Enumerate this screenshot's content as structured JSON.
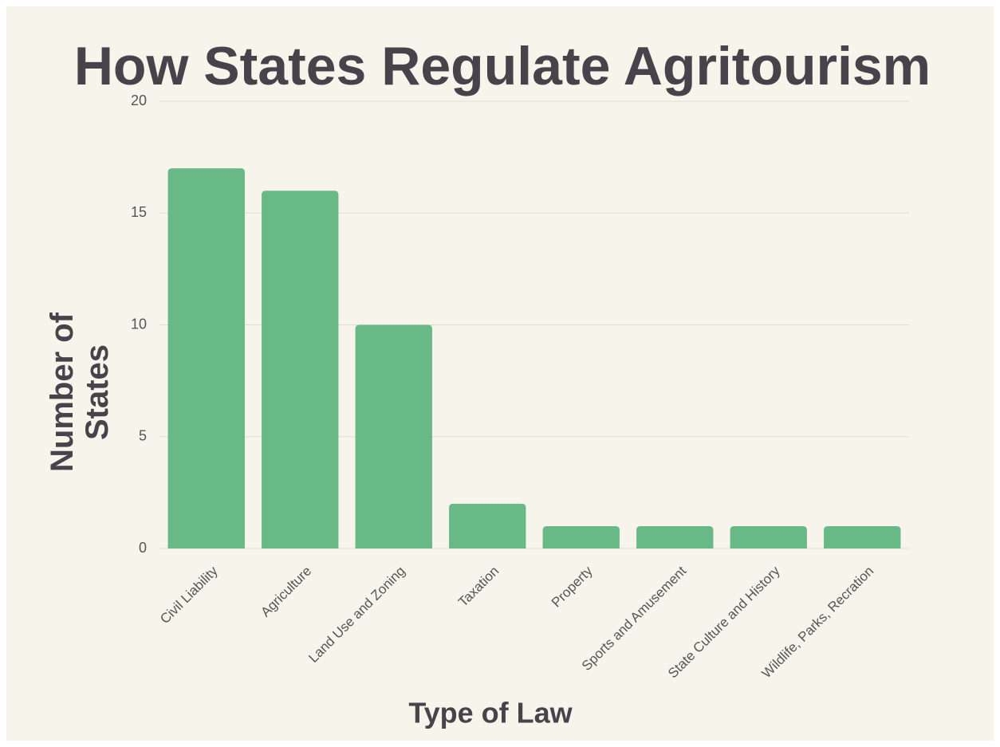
{
  "chart_data": {
    "type": "bar",
    "title": "How States Regulate Agritourism",
    "x_label": "Type of Law",
    "y_label": "Number of States",
    "categories": [
      "Civil Liability",
      "Agriculture",
      "Land Use and Zoning",
      "Taxation",
      "Property",
      "Sports and Amusement",
      "State Culture and History",
      "Wildlife, Parks, Recration"
    ],
    "values": [
      17,
      16,
      10,
      2,
      1,
      1,
      1,
      1
    ],
    "color": "#69b986",
    "ylim": [
      0,
      20
    ],
    "yticks": [
      0,
      5,
      10,
      15,
      20
    ],
    "grid": true
  }
}
